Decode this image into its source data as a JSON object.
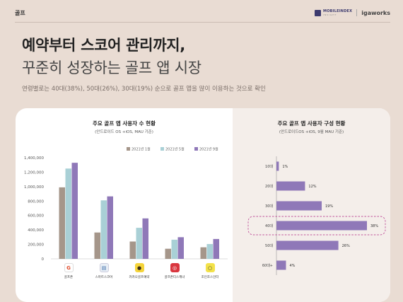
{
  "header": {
    "section": "골프",
    "brand1": "MOBILEINDEX",
    "brand1_sub": "INSIGHT",
    "brand2": "igaworks"
  },
  "headline": {
    "line1": "예약부터 스코어 관리까지,",
    "line2": "꾸준히 성장하는 골프 앱 시장",
    "subtitle": "연령별로는 40대(38%), 50대(26%), 30대(19%) 순으로 골프 앱을 많이 이용하는 것으로 확인"
  },
  "chart_data": [
    {
      "type": "bar",
      "title": "주요 골프 앱 사용자 수 현황",
      "subtitle": "(안드로이드 OS +iOS, MAU 기준)",
      "categories": [
        "골프존",
        "스마트스코어",
        "카카오골프예약",
        "골프존티스캐너",
        "조인조스인터"
      ],
      "series": [
        {
          "name": "2021년 1월",
          "color": "#a5968a",
          "values": [
            990000,
            365000,
            240000,
            140000,
            160000
          ]
        },
        {
          "name": "2021년 5월",
          "color": "#a9d0d6",
          "values": [
            1250000,
            810000,
            430000,
            265000,
            205000
          ]
        },
        {
          "name": "2021년 9월",
          "color": "#8f78b8",
          "values": [
            1330000,
            865000,
            560000,
            300000,
            275000
          ]
        }
      ],
      "ylim": [
        0,
        1400000
      ],
      "yticks": [
        "0",
        "200,000",
        "400,000",
        "600,000",
        "800,000",
        "1,000,000",
        "1,200,000",
        "1,400,000"
      ],
      "grid": false,
      "legend": "top-right"
    },
    {
      "type": "bar",
      "orientation": "horizontal",
      "title": "주요 골프 앱 사용자 구성 현황",
      "subtitle": "(안드로이드OS +iOS, 9월 MAU 기준)",
      "categories": [
        "10대",
        "20대",
        "30대",
        "40대",
        "50대",
        "60대+"
      ],
      "values": [
        1,
        12,
        19,
        38,
        26,
        4
      ],
      "value_labels": [
        "1%",
        "12%",
        "19%",
        "38%",
        "26%",
        "4%"
      ],
      "highlight": "40대",
      "color": "#8f78b8"
    }
  ],
  "apps": [
    {
      "name": "골프존",
      "icon": "golfzon-icon",
      "glyph": "G",
      "bg": "#ffffff",
      "fg": "#e04a2a",
      "border": "#ddd"
    },
    {
      "name": "스마트스코어",
      "icon": "smartscore-icon",
      "glyph": "▤",
      "bg": "#e8eef5",
      "fg": "#3a6ea8",
      "border": "#ccd"
    },
    {
      "name": "카카오골프예약",
      "icon": "kakaogolf-icon",
      "glyph": "●",
      "bg": "#f5d43a",
      "fg": "#3a2e1a",
      "border": "#f5d43a"
    },
    {
      "name": "골프존티스캐너",
      "icon": "teescanner-icon",
      "glyph": "◎",
      "bg": "#d9363e",
      "fg": "#ffffff",
      "border": "#d9363e"
    },
    {
      "name": "조인조스인터",
      "icon": "joins-icon",
      "glyph": "○",
      "bg": "#f3e24a",
      "fg": "#333",
      "border": "#f3e24a"
    }
  ]
}
